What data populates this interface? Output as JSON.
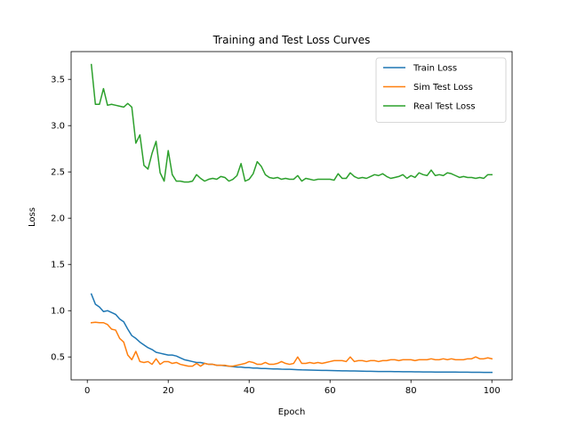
{
  "chart_data": {
    "type": "line",
    "title": "Training and Test Loss Curves",
    "xlabel": "Epoch",
    "ylabel": "Loss",
    "xlim": [
      -4,
      105
    ],
    "ylim": [
      0.2523,
      3.8
    ],
    "xticks": [
      0,
      20,
      40,
      60,
      80,
      100
    ],
    "yticks": [
      0.5,
      1.0,
      1.5,
      2.0,
      2.5,
      3.0,
      3.5
    ],
    "xtick_labels": [
      "0",
      "20",
      "40",
      "60",
      "80",
      "100"
    ],
    "ytick_labels": [
      "0.5",
      "1.0",
      "1.5",
      "2.0",
      "2.5",
      "3.0",
      "3.5"
    ],
    "grid": false,
    "legend_position": "top-right",
    "x": [
      1,
      2,
      3,
      4,
      5,
      6,
      7,
      8,
      9,
      10,
      11,
      12,
      13,
      14,
      15,
      16,
      17,
      18,
      19,
      20,
      21,
      22,
      23,
      24,
      25,
      26,
      27,
      28,
      29,
      30,
      31,
      32,
      33,
      34,
      35,
      36,
      37,
      38,
      39,
      40,
      41,
      42,
      43,
      44,
      45,
      46,
      47,
      48,
      49,
      50,
      51,
      52,
      53,
      54,
      55,
      56,
      57,
      58,
      59,
      60,
      61,
      62,
      63,
      64,
      65,
      66,
      67,
      68,
      69,
      70,
      71,
      72,
      73,
      74,
      75,
      76,
      77,
      78,
      79,
      80,
      81,
      82,
      83,
      84,
      85,
      86,
      87,
      88,
      89,
      90,
      91,
      92,
      93,
      94,
      95,
      96,
      97,
      98,
      99,
      100
    ],
    "series": [
      {
        "name": "Train Loss",
        "color": "#1f77b4",
        "values": [
          1.18,
          1.07,
          1.04,
          0.99,
          1.0,
          0.98,
          0.96,
          0.91,
          0.88,
          0.8,
          0.73,
          0.7,
          0.66,
          0.63,
          0.6,
          0.58,
          0.55,
          0.54,
          0.53,
          0.52,
          0.52,
          0.51,
          0.49,
          0.47,
          0.46,
          0.45,
          0.44,
          0.44,
          0.43,
          0.42,
          0.42,
          0.41,
          0.41,
          0.405,
          0.4,
          0.395,
          0.39,
          0.39,
          0.385,
          0.385,
          0.38,
          0.38,
          0.375,
          0.375,
          0.372,
          0.37,
          0.37,
          0.368,
          0.367,
          0.366,
          0.364,
          0.362,
          0.36,
          0.359,
          0.358,
          0.357,
          0.356,
          0.355,
          0.354,
          0.353,
          0.352,
          0.351,
          0.35,
          0.35,
          0.349,
          0.348,
          0.347,
          0.346,
          0.345,
          0.345,
          0.344,
          0.343,
          0.343,
          0.342,
          0.342,
          0.341,
          0.341,
          0.34,
          0.34,
          0.34,
          0.339,
          0.339,
          0.338,
          0.338,
          0.338,
          0.337,
          0.337,
          0.337,
          0.336,
          0.336,
          0.336,
          0.335,
          0.335,
          0.335,
          0.334,
          0.334,
          0.334,
          0.333,
          0.333,
          0.333
        ]
      },
      {
        "name": "Sim Test Loss",
        "color": "#ff7f0e",
        "values": [
          0.87,
          0.875,
          0.87,
          0.87,
          0.85,
          0.8,
          0.79,
          0.7,
          0.66,
          0.52,
          0.47,
          0.56,
          0.45,
          0.44,
          0.45,
          0.42,
          0.48,
          0.42,
          0.45,
          0.45,
          0.43,
          0.44,
          0.42,
          0.41,
          0.4,
          0.4,
          0.43,
          0.4,
          0.43,
          0.42,
          0.42,
          0.41,
          0.41,
          0.41,
          0.4,
          0.4,
          0.41,
          0.42,
          0.43,
          0.45,
          0.44,
          0.42,
          0.42,
          0.44,
          0.42,
          0.42,
          0.43,
          0.45,
          0.43,
          0.42,
          0.43,
          0.5,
          0.43,
          0.43,
          0.44,
          0.43,
          0.44,
          0.43,
          0.44,
          0.45,
          0.46,
          0.46,
          0.46,
          0.45,
          0.5,
          0.45,
          0.46,
          0.46,
          0.45,
          0.46,
          0.46,
          0.45,
          0.46,
          0.46,
          0.47,
          0.47,
          0.46,
          0.47,
          0.47,
          0.47,
          0.46,
          0.47,
          0.47,
          0.47,
          0.48,
          0.47,
          0.47,
          0.48,
          0.47,
          0.48,
          0.47,
          0.47,
          0.47,
          0.48,
          0.48,
          0.5,
          0.48,
          0.48,
          0.49,
          0.48
        ]
      },
      {
        "name": "Real Test Loss",
        "color": "#2ca02c",
        "values": [
          3.66,
          3.23,
          3.23,
          3.4,
          3.22,
          3.23,
          3.22,
          3.21,
          3.2,
          3.24,
          3.2,
          2.81,
          2.9,
          2.57,
          2.53,
          2.7,
          2.83,
          2.49,
          2.4,
          2.73,
          2.47,
          2.4,
          2.4,
          2.39,
          2.39,
          2.4,
          2.47,
          2.43,
          2.4,
          2.42,
          2.43,
          2.42,
          2.45,
          2.44,
          2.4,
          2.42,
          2.46,
          2.59,
          2.4,
          2.42,
          2.48,
          2.61,
          2.56,
          2.47,
          2.44,
          2.43,
          2.44,
          2.42,
          2.43,
          2.42,
          2.42,
          2.46,
          2.4,
          2.43,
          2.42,
          2.41,
          2.42,
          2.42,
          2.42,
          2.42,
          2.41,
          2.48,
          2.43,
          2.43,
          2.49,
          2.45,
          2.43,
          2.44,
          2.43,
          2.45,
          2.47,
          2.46,
          2.48,
          2.45,
          2.43,
          2.44,
          2.45,
          2.47,
          2.43,
          2.46,
          2.44,
          2.49,
          2.47,
          2.46,
          2.52,
          2.46,
          2.47,
          2.46,
          2.49,
          2.48,
          2.46,
          2.44,
          2.45,
          2.44,
          2.44,
          2.43,
          2.44,
          2.43,
          2.47,
          2.47
        ]
      }
    ]
  }
}
